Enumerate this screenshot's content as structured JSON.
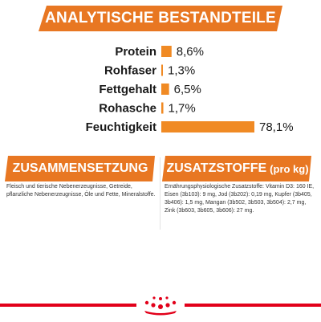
{
  "header": {
    "title": "ANALYTISCHE BESTANDTEILE"
  },
  "colors": {
    "accent": "#e87722",
    "bar": "#f08a24",
    "brand_red": "#e2001a"
  },
  "chart_data": {
    "type": "bar",
    "orientation": "horizontal",
    "categories": [
      "Protein",
      "Rohfaser",
      "Fettgehalt",
      "Rohasche",
      "Feuchtigkeit"
    ],
    "values": [
      8.6,
      1.3,
      6.5,
      1.7,
      78.1
    ],
    "value_labels": [
      "8,6%",
      "1,3%",
      "6,5%",
      "1,7%",
      "78,1%"
    ],
    "xlim": [
      0,
      78.1
    ],
    "grid": false,
    "legend": "none"
  },
  "composition": {
    "title": "ZUSAMMENSETZUNG",
    "lines": [
      "Fleisch und tierische Nebenerzeugnisse, Getreide,",
      "pflanzliche Nebenerzeugnisse, Öle und Fette, Mineralstoffe."
    ]
  },
  "additives": {
    "title": "ZUSATZSTOFFE",
    "title_unit": "(pro kg)",
    "lines": [
      "Ernährungsphysiologische Zusatzstoffe: Vitamin D3: 160 IE,",
      "Eisen (3b103): 9 mg, Jod (3b202): 0,19 mg, Kupfer (3b405,",
      "3b406): 1,5 mg, Mangan (3b502, 3b503, 3b504): 2,7 mg,",
      "Zink (3b603, 3b605, 3b606): 27 mg."
    ]
  },
  "logo": {
    "icon": "crown-logo-icon"
  }
}
